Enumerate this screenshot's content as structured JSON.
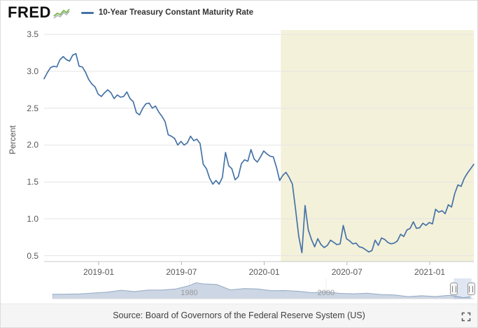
{
  "header": {
    "logo": "FRED",
    "legend": {
      "label": "10-Year Treasury Constant Maturity Rate",
      "line_color": "#4572a7"
    }
  },
  "chart_data": {
    "type": "line",
    "title": "10-Year Treasury Constant Maturity Rate",
    "ylabel": "Percent",
    "xlabel": "",
    "ylim": [
      0.42,
      3.56
    ],
    "yticks": [
      0.5,
      1.0,
      1.5,
      2.0,
      2.5,
      3.0,
      3.5
    ],
    "xtick_positions": [
      2019.0,
      2019.5,
      2020.0,
      2020.5,
      2021.0
    ],
    "xtick_labels": [
      "2019-01",
      "2019-07",
      "2020-01",
      "2020-07",
      "2021-01"
    ],
    "grid": "horizontal",
    "legend_position": "top-left",
    "x": {
      "start": 2018.67,
      "step": 0.019231,
      "count": 136,
      "unit": "decimal-year"
    },
    "shaded_region": {
      "start": 2020.1,
      "end": 2021.27,
      "color": "#f4f1da"
    },
    "series": [
      {
        "name": "10-Year Treasury Constant Maturity Rate",
        "color": "#4572a7",
        "values": [
          2.9,
          2.98,
          3.05,
          3.07,
          3.06,
          3.16,
          3.2,
          3.16,
          3.14,
          3.22,
          3.24,
          3.07,
          3.06,
          2.99,
          2.89,
          2.83,
          2.79,
          2.69,
          2.66,
          2.71,
          2.75,
          2.71,
          2.63,
          2.68,
          2.65,
          2.66,
          2.72,
          2.63,
          2.59,
          2.44,
          2.41,
          2.5,
          2.56,
          2.57,
          2.5,
          2.53,
          2.45,
          2.39,
          2.32,
          2.14,
          2.12,
          2.09,
          2.0,
          2.05,
          2.0,
          2.03,
          2.12,
          2.06,
          2.08,
          2.02,
          1.74,
          1.68,
          1.55,
          1.47,
          1.52,
          1.47,
          1.56,
          1.9,
          1.72,
          1.68,
          1.53,
          1.57,
          1.75,
          1.8,
          1.78,
          1.94,
          1.81,
          1.77,
          1.84,
          1.92,
          1.88,
          1.85,
          1.84,
          1.7,
          1.52,
          1.59,
          1.63,
          1.56,
          1.47,
          1.13,
          0.76,
          0.54,
          1.18,
          0.85,
          0.72,
          0.62,
          0.73,
          0.65,
          0.61,
          0.64,
          0.71,
          0.68,
          0.65,
          0.66,
          0.91,
          0.73,
          0.7,
          0.66,
          0.67,
          0.62,
          0.61,
          0.58,
          0.55,
          0.57,
          0.71,
          0.64,
          0.74,
          0.72,
          0.68,
          0.66,
          0.67,
          0.7,
          0.79,
          0.76,
          0.85,
          0.87,
          0.96,
          0.87,
          0.88,
          0.94,
          0.91,
          0.95,
          0.93,
          1.13,
          1.09,
          1.11,
          1.07,
          1.19,
          1.16,
          1.34,
          1.46,
          1.44,
          1.55,
          1.62,
          1.68,
          1.74
        ]
      }
    ]
  },
  "navigator": {
    "xrange": [
      1960,
      2021.6
    ],
    "ymax": 16,
    "tick_positions": [
      1980,
      2000
    ],
    "tick_labels": [
      "1980",
      "2000"
    ],
    "selection": [
      2018.67,
      2021.27
    ],
    "area_color": "#ccd6e4",
    "line_color": "#94a8c3",
    "x": [
      1960,
      1962,
      1964,
      1966,
      1968,
      1970,
      1972,
      1974,
      1976,
      1978,
      1980,
      1981,
      1982,
      1984,
      1986,
      1988,
      1990,
      1992,
      1994,
      1996,
      1998,
      2000,
      2002,
      2004,
      2006,
      2008,
      2010,
      2012,
      2014,
      2016,
      2018,
      2019,
      2020,
      2021
    ],
    "values": [
      3.9,
      3.95,
      4.19,
      4.92,
      5.65,
      7.35,
      6.21,
      7.56,
      7.61,
      8.41,
      11.43,
      13.92,
      13.0,
      12.46,
      7.67,
      8.85,
      8.55,
      7.01,
      7.09,
      6.44,
      5.26,
      6.03,
      4.61,
      4.27,
      4.8,
      3.66,
      3.22,
      1.8,
      2.54,
      1.84,
      2.91,
      2.14,
      0.89,
      1.45
    ]
  },
  "footer": {
    "source": "Source: Board of Governors of the Federal Reserve System (US)"
  }
}
